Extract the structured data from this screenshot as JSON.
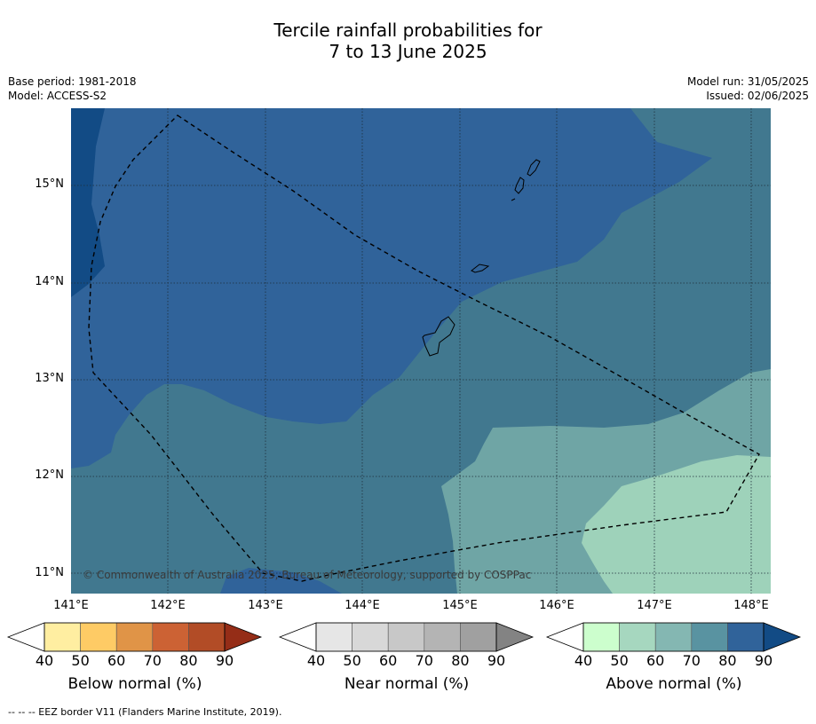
{
  "title_line1": "Tercile rainfall probabilities for",
  "title_line2": "7 to 13 June 2025",
  "meta_left": {
    "base_period": "Base period: 1981-2018",
    "model": "Model: ACCESS-S2"
  },
  "meta_right": {
    "model_run": "Model run: 31/05/2025",
    "issued": "Issued: 02/06/2025"
  },
  "map": {
    "lat_labels": [
      "15°N",
      "14°N",
      "13°N",
      "12°N",
      "11°N"
    ],
    "lon_labels": [
      "141°E",
      "142°E",
      "143°E",
      "144°E",
      "145°E",
      "146°E",
      "147°E",
      "148°E"
    ],
    "copyright": "© Commonwealth of Australia 2025, Bureau of Meteorology, supported by COSPPac",
    "colors": {
      "above_80": "#30639a",
      "above_90": "#124b85",
      "above_70": "#41788f",
      "above_60": "#6fa5a5",
      "above_50": "#9ed2ba"
    }
  },
  "colorbars": [
    {
      "title": "Below normal (%)",
      "ticks": [
        "40",
        "50",
        "60",
        "70",
        "80",
        "90"
      ],
      "colors": [
        "#ffffff",
        "#ffeea1",
        "#fecb65",
        "#e09447",
        "#cc6234",
        "#b24c26",
        "#952d17"
      ]
    },
    {
      "title": "Near normal (%)",
      "ticks": [
        "40",
        "50",
        "60",
        "70",
        "80",
        "90"
      ],
      "colors": [
        "#ffffff",
        "#e6e6e6",
        "#d8d8d8",
        "#c8c8c8",
        "#b4b4b4",
        "#a0a0a0",
        "#838383"
      ]
    },
    {
      "title": "Above normal (%)",
      "ticks": [
        "40",
        "50",
        "60",
        "70",
        "80",
        "90"
      ],
      "colors": [
        "#ffffff",
        "#ccfecd",
        "#a6d7bf",
        "#84b7b2",
        "#5993a1",
        "#30639a",
        "#124b85"
      ]
    }
  ],
  "footnote": "-- -- -- EEZ border V11 (Flanders Marine Institute, 2019)."
}
